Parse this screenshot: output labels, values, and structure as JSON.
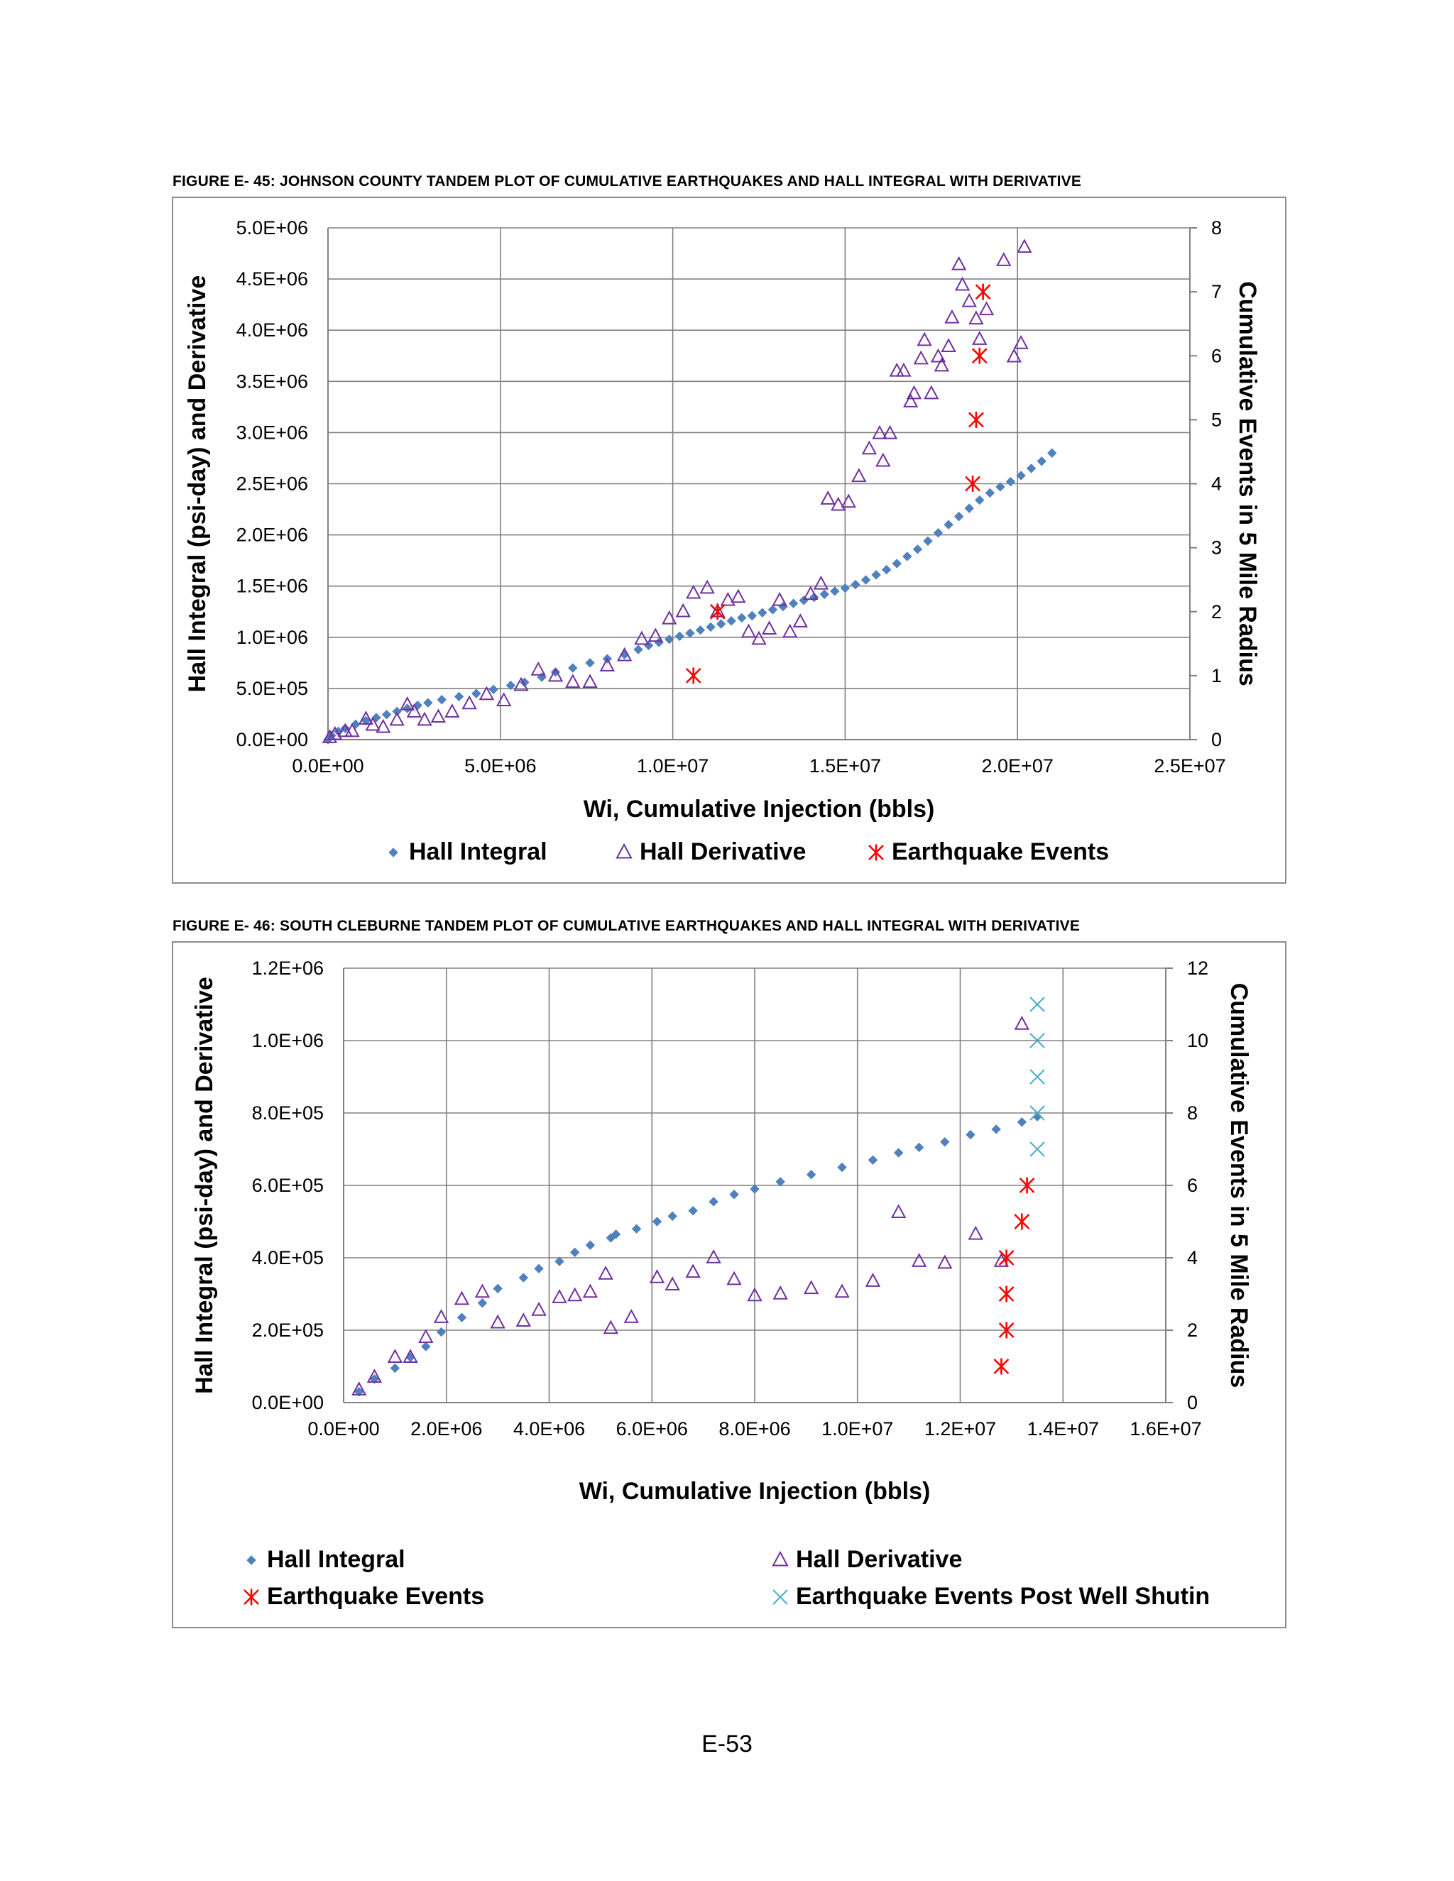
{
  "page": {
    "number": "E-53"
  },
  "figures": [
    {
      "caption": "FIGURE E- 45:  JOHNSON COUNTY TANDEM PLOT OF CUMULATIVE EARTHQUAKES AND HALL INTEGRAL WITH DERIVATIVE"
    },
    {
      "caption": "FIGURE E- 46:  SOUTH CLEBURNE TANDEM PLOT OF CUMULATIVE EARTHQUAKES AND HALL INTEGRAL WITH DERIVATIVE"
    }
  ],
  "colors": {
    "hall_integral": "#4f81bd",
    "hall_derivative": "#7030a0",
    "earthquake": "#ff0000",
    "post_shutin": "#4bacc6",
    "grid": "#808080"
  },
  "chart_data": [
    {
      "type": "scatter",
      "title": "",
      "xlabel": "Wi, Cumulative Injection (bbls)",
      "ylabel": "Hall Integral (psi-day) and Derivative",
      "y2label": "Cumulative Events in 5 Mile Radius",
      "xlim": [
        0,
        25000000
      ],
      "ylim": [
        0,
        5000000
      ],
      "y2lim": [
        0,
        8
      ],
      "xticks": [
        "0.0E+00",
        "5.0E+06",
        "1.0E+07",
        "1.5E+07",
        "2.0E+07",
        "2.5E+07"
      ],
      "yticks": [
        "0.0E+00",
        "5.0E+05",
        "1.0E+06",
        "1.5E+06",
        "2.0E+06",
        "2.5E+06",
        "3.0E+06",
        "3.5E+06",
        "4.0E+06",
        "4.5E+06",
        "5.0E+06"
      ],
      "y2ticks": [
        "0",
        "1",
        "2",
        "3",
        "4",
        "5",
        "6",
        "7",
        "8"
      ],
      "grid": true,
      "legend_position": "bottom",
      "series": [
        {
          "name": "Hall Integral",
          "marker": "diamond",
          "axis": "left",
          "points": [
            [
              0,
              0
            ],
            [
              100000,
              40000
            ],
            [
              300000,
              80000
            ],
            [
              500000,
              110000
            ],
            [
              800000,
              150000
            ],
            [
              1100000,
              185000
            ],
            [
              1400000,
              215000
            ],
            [
              1700000,
              245000
            ],
            [
              2000000,
              275000
            ],
            [
              2300000,
              305000
            ],
            [
              2600000,
              335000
            ],
            [
              2900000,
              360000
            ],
            [
              3300000,
              390000
            ],
            [
              3800000,
              420000
            ],
            [
              4300000,
              450000
            ],
            [
              4800000,
              490000
            ],
            [
              5300000,
              530000
            ],
            [
              5700000,
              560000
            ],
            [
              6200000,
              610000
            ],
            [
              6600000,
              660000
            ],
            [
              7100000,
              700000
            ],
            [
              7600000,
              750000
            ],
            [
              8100000,
              790000
            ],
            [
              8600000,
              830000
            ],
            [
              9000000,
              880000
            ],
            [
              9300000,
              920000
            ],
            [
              9600000,
              950000
            ],
            [
              9900000,
              980000
            ],
            [
              10200000,
              1010000
            ],
            [
              10500000,
              1040000
            ],
            [
              10800000,
              1070000
            ],
            [
              11100000,
              1100000
            ],
            [
              11400000,
              1130000
            ],
            [
              11700000,
              1160000
            ],
            [
              12000000,
              1190000
            ],
            [
              12300000,
              1210000
            ],
            [
              12600000,
              1240000
            ],
            [
              12900000,
              1270000
            ],
            [
              13200000,
              1300000
            ],
            [
              13500000,
              1330000
            ],
            [
              13800000,
              1360000
            ],
            [
              14100000,
              1390000
            ],
            [
              14400000,
              1420000
            ],
            [
              14700000,
              1450000
            ],
            [
              15000000,
              1480000
            ],
            [
              15300000,
              1515000
            ],
            [
              15600000,
              1560000
            ],
            [
              15900000,
              1610000
            ],
            [
              16200000,
              1660000
            ],
            [
              16500000,
              1720000
            ],
            [
              16800000,
              1790000
            ],
            [
              17100000,
              1860000
            ],
            [
              17400000,
              1940000
            ],
            [
              17700000,
              2020000
            ],
            [
              18000000,
              2100000
            ],
            [
              18300000,
              2180000
            ],
            [
              18600000,
              2260000
            ],
            [
              18900000,
              2340000
            ],
            [
              19200000,
              2410000
            ],
            [
              19500000,
              2470000
            ],
            [
              19800000,
              2520000
            ],
            [
              20100000,
              2580000
            ],
            [
              20400000,
              2650000
            ],
            [
              20700000,
              2720000
            ],
            [
              21000000,
              2800000
            ]
          ]
        },
        {
          "name": "Hall Derivative",
          "marker": "triangle-open",
          "axis": "left",
          "points": [
            [
              50000,
              20000
            ],
            [
              200000,
              50000
            ],
            [
              500000,
              80000
            ],
            [
              700000,
              80000
            ],
            [
              1100000,
              200000
            ],
            [
              1300000,
              140000
            ],
            [
              1600000,
              120000
            ],
            [
              2000000,
              190000
            ],
            [
              2300000,
              340000
            ],
            [
              2500000,
              270000
            ],
            [
              2800000,
              190000
            ],
            [
              3200000,
              220000
            ],
            [
              3600000,
              270000
            ],
            [
              4100000,
              350000
            ],
            [
              4600000,
              440000
            ],
            [
              5100000,
              380000
            ],
            [
              5600000,
              530000
            ],
            [
              6100000,
              680000
            ],
            [
              6600000,
              620000
            ],
            [
              7100000,
              560000
            ],
            [
              7600000,
              560000
            ],
            [
              8100000,
              720000
            ],
            [
              8600000,
              820000
            ],
            [
              9100000,
              980000
            ],
            [
              9500000,
              1010000
            ],
            [
              9900000,
              1180000
            ],
            [
              10300000,
              1250000
            ],
            [
              10600000,
              1430000
            ],
            [
              11000000,
              1480000
            ],
            [
              11300000,
              1250000
            ],
            [
              11600000,
              1360000
            ],
            [
              11900000,
              1390000
            ],
            [
              12200000,
              1050000
            ],
            [
              12500000,
              980000
            ],
            [
              12800000,
              1080000
            ],
            [
              13100000,
              1360000
            ],
            [
              13400000,
              1050000
            ],
            [
              13700000,
              1150000
            ],
            [
              14000000,
              1420000
            ],
            [
              14300000,
              1520000
            ],
            [
              14500000,
              2350000
            ],
            [
              14800000,
              2290000
            ],
            [
              15100000,
              2320000
            ],
            [
              15400000,
              2570000
            ],
            [
              15700000,
              2840000
            ],
            [
              16000000,
              2990000
            ],
            [
              16100000,
              2720000
            ],
            [
              16300000,
              2990000
            ],
            [
              16500000,
              3600000
            ],
            [
              16700000,
              3600000
            ],
            [
              16900000,
              3300000
            ],
            [
              17000000,
              3380000
            ],
            [
              17200000,
              3720000
            ],
            [
              17300000,
              3900000
            ],
            [
              17500000,
              3380000
            ],
            [
              17700000,
              3740000
            ],
            [
              17800000,
              3650000
            ],
            [
              18000000,
              3840000
            ],
            [
              18100000,
              4120000
            ],
            [
              18300000,
              4640000
            ],
            [
              18400000,
              4440000
            ],
            [
              18600000,
              4280000
            ],
            [
              18800000,
              4110000
            ],
            [
              18900000,
              3910000
            ],
            [
              19100000,
              4200000
            ],
            [
              19600000,
              4680000
            ],
            [
              19900000,
              3740000
            ],
            [
              20100000,
              3870000
            ],
            [
              20200000,
              4810000
            ]
          ]
        },
        {
          "name": "Earthquake Events",
          "marker": "asterisk",
          "axis": "right",
          "points": [
            [
              10600000,
              1
            ],
            [
              11300000,
              2
            ],
            [
              18700000,
              4
            ],
            [
              18800000,
              5
            ],
            [
              18900000,
              6
            ],
            [
              19000000,
              7
            ]
          ]
        }
      ]
    },
    {
      "type": "scatter",
      "title": "",
      "xlabel": "Wi, Cumulative Injection (bbls)",
      "ylabel": "Hall Integral (psi-day) and Derivative",
      "y2label": "Cumulative Events in 5 Mile Radius",
      "xlim": [
        0,
        16000000
      ],
      "ylim": [
        0,
        1200000
      ],
      "y2lim": [
        0,
        12
      ],
      "xticks": [
        "0.0E+00",
        "2.0E+06",
        "4.0E+06",
        "6.0E+06",
        "8.0E+06",
        "1.0E+07",
        "1.2E+07",
        "1.4E+07",
        "1.6E+07"
      ],
      "yticks": [
        "0.0E+00",
        "2.0E+05",
        "4.0E+05",
        "6.0E+05",
        "8.0E+05",
        "1.0E+06",
        "1.2E+06"
      ],
      "y2ticks": [
        "0",
        "2",
        "4",
        "6",
        "8",
        "10",
        "12"
      ],
      "grid": true,
      "legend_position": "bottom",
      "series": [
        {
          "name": "Hall Integral",
          "marker": "diamond",
          "axis": "left",
          "points": [
            [
              300000,
              30000
            ],
            [
              600000,
              65000
            ],
            [
              1000000,
              95000
            ],
            [
              1300000,
              125000
            ],
            [
              1600000,
              155000
            ],
            [
              1900000,
              195000
            ],
            [
              2300000,
              235000
            ],
            [
              2700000,
              275000
            ],
            [
              3000000,
              315000
            ],
            [
              3500000,
              345000
            ],
            [
              3800000,
              370000
            ],
            [
              4200000,
              390000
            ],
            [
              4500000,
              415000
            ],
            [
              4800000,
              435000
            ],
            [
              5200000,
              455000
            ],
            [
              5300000,
              465000
            ],
            [
              5700000,
              480000
            ],
            [
              6100000,
              500000
            ],
            [
              6400000,
              515000
            ],
            [
              6800000,
              530000
            ],
            [
              7200000,
              555000
            ],
            [
              7600000,
              575000
            ],
            [
              8000000,
              590000
            ],
            [
              8500000,
              610000
            ],
            [
              9100000,
              630000
            ],
            [
              9700000,
              650000
            ],
            [
              10300000,
              670000
            ],
            [
              10800000,
              690000
            ],
            [
              11200000,
              705000
            ],
            [
              11700000,
              720000
            ],
            [
              12200000,
              740000
            ],
            [
              12700000,
              755000
            ],
            [
              13200000,
              775000
            ],
            [
              13500000,
              790000
            ]
          ]
        },
        {
          "name": "Hall Derivative",
          "marker": "triangle-open",
          "axis": "left",
          "points": [
            [
              300000,
              35000
            ],
            [
              600000,
              70000
            ],
            [
              1000000,
              125000
            ],
            [
              1300000,
              125000
            ],
            [
              1600000,
              180000
            ],
            [
              1900000,
              235000
            ],
            [
              2300000,
              285000
            ],
            [
              2700000,
              305000
            ],
            [
              3000000,
              220000
            ],
            [
              3500000,
              225000
            ],
            [
              3800000,
              255000
            ],
            [
              4200000,
              290000
            ],
            [
              4500000,
              295000
            ],
            [
              4800000,
              305000
            ],
            [
              5100000,
              355000
            ],
            [
              5200000,
              205000
            ],
            [
              5600000,
              235000
            ],
            [
              6100000,
              345000
            ],
            [
              6400000,
              325000
            ],
            [
              6800000,
              360000
            ],
            [
              7200000,
              400000
            ],
            [
              7600000,
              340000
            ],
            [
              8000000,
              295000
            ],
            [
              8500000,
              300000
            ],
            [
              9100000,
              315000
            ],
            [
              9700000,
              305000
            ],
            [
              10300000,
              335000
            ],
            [
              10800000,
              525000
            ],
            [
              11200000,
              390000
            ],
            [
              11700000,
              385000
            ],
            [
              12300000,
              465000
            ],
            [
              12800000,
              390000
            ],
            [
              13200000,
              1045000
            ]
          ]
        },
        {
          "name": "Earthquake Events",
          "marker": "asterisk",
          "axis": "right",
          "points": [
            [
              12800000,
              1
            ],
            [
              12900000,
              2
            ],
            [
              12900000,
              3
            ],
            [
              12900000,
              4
            ],
            [
              13200000,
              5
            ],
            [
              13300000,
              6
            ]
          ]
        },
        {
          "name": "Earthquake Events Post Well Shutin",
          "marker": "x",
          "axis": "right",
          "points": [
            [
              13500000,
              7
            ],
            [
              13500000,
              8
            ],
            [
              13500000,
              9
            ],
            [
              13500000,
              10
            ],
            [
              13500000,
              11
            ]
          ]
        }
      ]
    }
  ]
}
